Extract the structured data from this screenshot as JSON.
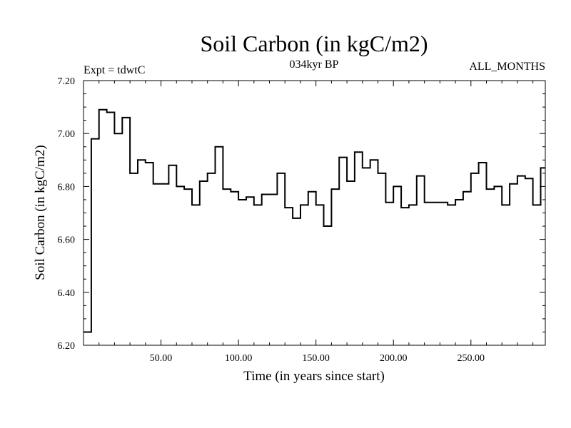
{
  "chart_data": {
    "type": "line",
    "style": "step",
    "title": "Soil Carbon (in kgC/m2)",
    "subtitle": "034kyr BP",
    "experiment": "Expt = tdwtC",
    "period": "ALL_MONTHS",
    "xlabel": "Time (in years since start)",
    "ylabel": "Soil Carbon (in kgC/m2)",
    "xlim": [
      0,
      298
    ],
    "ylim": [
      6.2,
      7.2
    ],
    "xticks": [
      50,
      100,
      150,
      200,
      250
    ],
    "xtick_labels": [
      "50.00",
      "100.00",
      "150.00",
      "200.00",
      "250.00"
    ],
    "yticks": [
      6.2,
      6.4,
      6.6,
      6.8,
      7.0,
      7.2
    ],
    "ytick_labels": [
      "6.20",
      "6.40",
      "6.60",
      "6.80",
      "7.00",
      "7.20"
    ],
    "series": [
      {
        "name": "Soil Carbon",
        "step_width": 5,
        "x": [
          0,
          5,
          10,
          15,
          20,
          25,
          30,
          35,
          40,
          45,
          50,
          55,
          60,
          65,
          70,
          75,
          80,
          85,
          90,
          95,
          100,
          105,
          110,
          115,
          120,
          125,
          130,
          135,
          140,
          145,
          150,
          155,
          160,
          165,
          170,
          175,
          180,
          185,
          190,
          195,
          200,
          205,
          210,
          215,
          220,
          225,
          230,
          235,
          240,
          245,
          250,
          255,
          260,
          265,
          270,
          275,
          280,
          285,
          290,
          295
        ],
        "values": [
          6.25,
          6.98,
          7.09,
          7.08,
          7.0,
          7.06,
          6.85,
          6.9,
          6.89,
          6.81,
          6.81,
          6.88,
          6.8,
          6.79,
          6.73,
          6.82,
          6.85,
          6.95,
          6.79,
          6.78,
          6.75,
          6.76,
          6.73,
          6.77,
          6.77,
          6.85,
          6.72,
          6.68,
          6.73,
          6.78,
          6.73,
          6.65,
          6.79,
          6.91,
          6.82,
          6.93,
          6.87,
          6.9,
          6.85,
          6.74,
          6.8,
          6.72,
          6.73,
          6.84,
          6.74,
          6.74,
          6.74,
          6.73,
          6.75,
          6.78,
          6.85,
          6.89,
          6.79,
          6.8,
          6.73,
          6.81,
          6.84,
          6.83,
          6.73,
          6.87
        ]
      }
    ]
  }
}
